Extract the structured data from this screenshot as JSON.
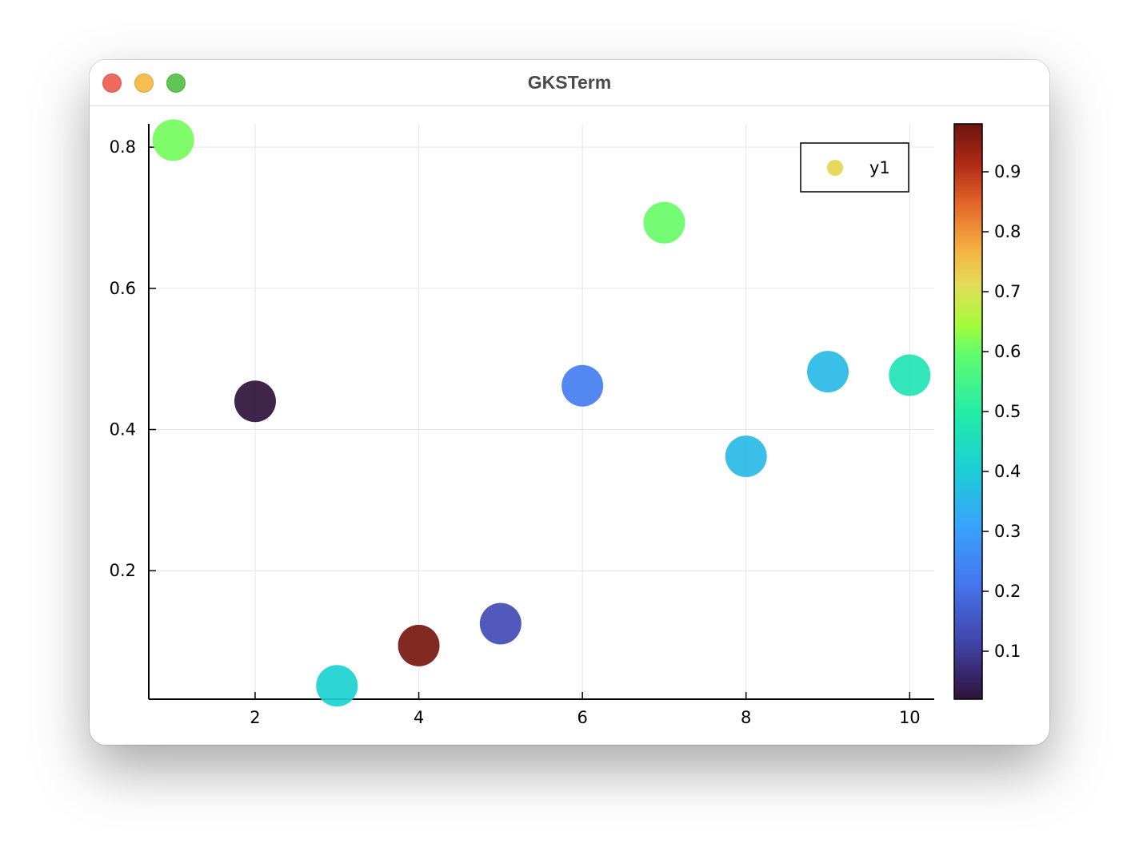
{
  "window": {
    "title": "GKSTerm",
    "buttons": {
      "close": "#ee6a5f",
      "minimize": "#f5be4f",
      "maximize": "#62c655"
    }
  },
  "chart_data": {
    "type": "scatter",
    "x": [
      1,
      2,
      3,
      4,
      5,
      6,
      7,
      8,
      9,
      10
    ],
    "y": [
      0.81,
      0.44,
      0.037,
      0.094,
      0.125,
      0.462,
      0.693,
      0.362,
      0.482,
      0.477
    ],
    "color_values": [
      0.61,
      0.02,
      0.41,
      0.97,
      0.13,
      0.23,
      0.6,
      0.36,
      0.36,
      0.47
    ],
    "series": [
      {
        "name": "y1",
        "legend_color": "#e6d95b"
      }
    ],
    "xlim": [
      0.7,
      10.3
    ],
    "ylim": [
      0.018,
      0.833
    ],
    "xticks": [
      2,
      4,
      6,
      8,
      10
    ],
    "xtick_labels": [
      "2",
      "4",
      "6",
      "8",
      "10"
    ],
    "yticks": [
      0.2,
      0.4,
      0.6,
      0.8
    ],
    "ytick_labels": [
      "0.2",
      "0.4",
      "0.6",
      "0.8"
    ],
    "grid": true,
    "legend_position": "top-right",
    "colorbar": {
      "colormap": "turbo",
      "range": [
        0.02,
        0.98
      ],
      "ticks": [
        0.1,
        0.2,
        0.3,
        0.4,
        0.5,
        0.6,
        0.7,
        0.8,
        0.9
      ],
      "tick_labels": [
        "0.1",
        "0.2",
        "0.3",
        "0.4",
        "0.5",
        "0.6",
        "0.7",
        "0.8",
        "0.9"
      ]
    }
  }
}
